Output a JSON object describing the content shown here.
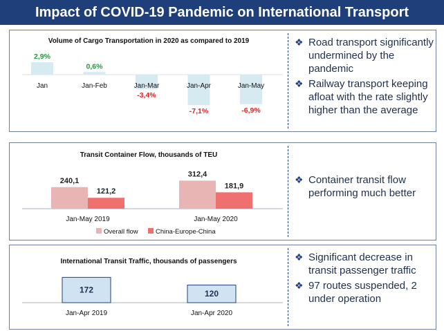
{
  "header": {
    "title": "Impact of COVID-19 Pandemic on International Transport"
  },
  "panels": [
    {
      "bullets": [
        "Road transport significantly undermined by the pandemic",
        "Railway transport keeping afloat with the rate slightly higher than the average"
      ]
    },
    {
      "bullets": [
        "Container transit flow performing much better"
      ]
    },
    {
      "bullets": [
        "Significant decrease in transit passenger traffic",
        "97 routes suspended, 2 under operation"
      ]
    }
  ],
  "bullet_icon": "diamond-bullet-icon",
  "colors": {
    "header_bg": "#1f3f7a",
    "cargo_bar": "#d6eaf2",
    "positive_label": "#1e9c3a",
    "negative_label": "#e02020",
    "overall_flow": "#e8b4b4",
    "china_europe_china": "#f07070",
    "passenger_box": "#cfe3f3",
    "passenger_border": "#1f3f7a"
  },
  "chart_data": [
    {
      "type": "bar",
      "title": "Volume of Cargo Transportation in 2020 as compared to 2019",
      "categories": [
        "Jan",
        "Jan-Feb",
        "Jan-Mar",
        "Jan-Apr",
        "Jan-May"
      ],
      "values": [
        2.9,
        0.6,
        -3.4,
        -7.1,
        -6.9
      ],
      "labels": [
        "2,9%",
        "0,6%",
        "-3,4%",
        "-7,1%",
        "-6,9%"
      ],
      "unit": "%"
    },
    {
      "type": "bar",
      "title": "Transit Container Flow, thousands of TEU",
      "categories": [
        "Jan-May 2019",
        "Jan-May 2020"
      ],
      "series": [
        {
          "name": "Overall flow",
          "values": [
            240.1,
            312.4
          ],
          "labels": [
            "240,1",
            "312,4"
          ]
        },
        {
          "name": "China-Europe-China",
          "values": [
            121.2,
            181.9
          ],
          "labels": [
            "121,2",
            "181,9"
          ]
        }
      ],
      "legend": "bottom"
    },
    {
      "type": "bar",
      "title": "International Transit Traffic, thousands of passengers",
      "categories": [
        "Jan-Apr 2019",
        "Jan-Apr 2020"
      ],
      "values": [
        172,
        120
      ],
      "labels": [
        "172",
        "120"
      ]
    }
  ]
}
